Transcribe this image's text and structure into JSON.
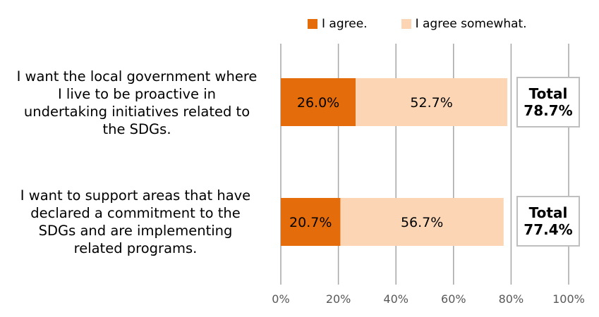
{
  "chart_data": {
    "type": "bar",
    "orientation": "horizontal",
    "stacked": true,
    "categories": [
      "I want the local government where\nI live to be proactive in\nundertaking initiatives related to\nthe SDGs.",
      "I want to support areas that have\ndeclared a commitment to the\nSDGs and are implementing\nrelated programs."
    ],
    "series": [
      {
        "name": "I agree.",
        "color": "#e46c0a",
        "values": [
          26.0,
          20.7
        ],
        "labels": [
          "26.0%",
          "20.7%"
        ]
      },
      {
        "name": "I agree somewhat.",
        "color": "#fcd5b5",
        "values": [
          52.7,
          56.7
        ],
        "labels": [
          "52.7%",
          "56.7%"
        ]
      }
    ],
    "totals": [
      {
        "label": "Total",
        "value": "78.7%"
      },
      {
        "label": "Total",
        "value": "77.4%"
      }
    ],
    "xlim": [
      0,
      100
    ],
    "xticks": [
      "0%",
      "20%",
      "40%",
      "60%",
      "80%",
      "100%"
    ],
    "grid": true,
    "legend": "top"
  }
}
